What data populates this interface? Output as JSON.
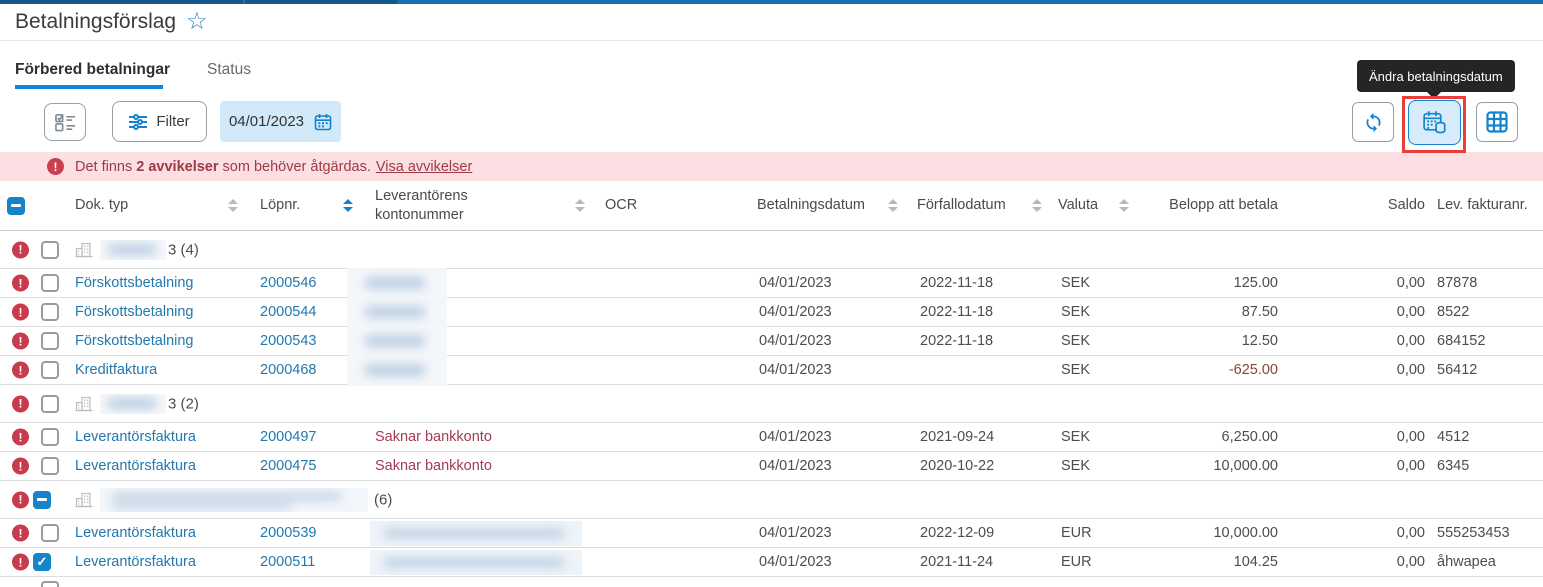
{
  "page": {
    "title": "Betalningsförslag"
  },
  "tabs": {
    "prepare": "Förbered betalningar",
    "status": "Status"
  },
  "toolbar": {
    "filter_label": "Filter",
    "date_value": "04/01/2023",
    "tooltip": "Ändra betalningsdatum"
  },
  "alert": {
    "prefix": "Det finns",
    "count_bold": "2 avvikelser",
    "suffix": "som behöver åtgärdas.",
    "link": "Visa avvikelser"
  },
  "colors": {
    "accent_blue": "#1482cc",
    "alert_red": "#9e3a45",
    "annotation_red": "#e93f38"
  },
  "table": {
    "columns": [
      {
        "label": "Dok. typ",
        "sort": "inactive"
      },
      {
        "label": "Löpnr.",
        "sort": "active"
      },
      {
        "label": "Leverantörens kontonummer",
        "sort": "inactive"
      },
      {
        "label": "OCR",
        "sort": "none"
      },
      {
        "label": "Betalningsdatum",
        "sort": "inactive"
      },
      {
        "label": "Förfallodatum",
        "sort": "inactive"
      },
      {
        "label": "Valuta",
        "sort": "inactive"
      },
      {
        "label": "Belopp att betala",
        "sort": "none"
      },
      {
        "label": "Saldo",
        "sort": "none"
      },
      {
        "label": "Lev. fakturanr.",
        "sort": "none"
      }
    ],
    "header_checkbox": "indeterminate",
    "rows": [
      {
        "kind": "group",
        "label": "3 (4)",
        "checkbox": "unchecked",
        "error": false,
        "blur": "small"
      },
      {
        "kind": "data",
        "doc": "Förskottsbetalning",
        "lopnr": "2000546",
        "konto": "",
        "konto_blur": "narrow",
        "betal": "04/01/2023",
        "forfall": "2022-11-18",
        "valuta": "SEK",
        "belopp": "125.00",
        "saldo": "0,00",
        "lev": "87878",
        "checkbox": "unchecked",
        "error": false
      },
      {
        "kind": "data",
        "doc": "Förskottsbetalning",
        "lopnr": "2000544",
        "konto": "",
        "konto_blur": "narrow",
        "betal": "04/01/2023",
        "forfall": "2022-11-18",
        "valuta": "SEK",
        "belopp": "87.50",
        "saldo": "0,00",
        "lev": "8522",
        "checkbox": "unchecked",
        "error": false
      },
      {
        "kind": "data",
        "doc": "Förskottsbetalning",
        "lopnr": "2000543",
        "konto": "",
        "konto_blur": "narrow",
        "betal": "04/01/2023",
        "forfall": "2022-11-18",
        "valuta": "SEK",
        "belopp": "12.50",
        "saldo": "0,00",
        "lev": "684152",
        "checkbox": "unchecked",
        "error": false
      },
      {
        "kind": "data",
        "doc": "Kreditfaktura",
        "lopnr": "2000468",
        "konto": "",
        "konto_blur": "narrow",
        "betal": "04/01/2023",
        "forfall": "",
        "valuta": "SEK",
        "belopp": "-625.00",
        "saldo": "0,00",
        "lev": "56412",
        "checkbox": "unchecked",
        "error": false
      },
      {
        "kind": "group",
        "label": "3 (2)",
        "checkbox": "unchecked",
        "error": false,
        "blur": "small"
      },
      {
        "kind": "data",
        "doc": "Leverantörsfaktura",
        "lopnr": "2000497",
        "konto": "Saknar bankkonto",
        "konto_blur": "",
        "betal": "04/01/2023",
        "forfall": "2021-09-24",
        "valuta": "SEK",
        "belopp": "6,250.00",
        "saldo": "0,00",
        "lev": "4512",
        "checkbox": "unchecked",
        "error": false
      },
      {
        "kind": "data",
        "doc": "Leverantörsfaktura",
        "lopnr": "2000475",
        "konto": "Saknar bankkonto",
        "konto_blur": "",
        "betal": "04/01/2023",
        "forfall": "2020-10-22",
        "valuta": "SEK",
        "belopp": "10,000.00",
        "saldo": "0,00",
        "lev": "6345",
        "checkbox": "unchecked",
        "error": false
      },
      {
        "kind": "group",
        "label": "(6)",
        "checkbox": "indeterminate",
        "error": true,
        "blur": "big"
      },
      {
        "kind": "data",
        "doc": "Leverantörsfaktura",
        "lopnr": "2000539",
        "konto": "",
        "konto_blur": "wide",
        "betal": "04/01/2023",
        "forfall": "2022-12-09",
        "valuta": "EUR",
        "belopp": "10,000.00",
        "saldo": "0,00",
        "lev": "555253453",
        "checkbox": "unchecked",
        "error": false
      },
      {
        "kind": "data",
        "doc": "Leverantörsfaktura",
        "lopnr": "2000511",
        "konto": "",
        "konto_blur": "wide",
        "betal": "04/01/2023",
        "forfall": "2021-11-24",
        "valuta": "EUR",
        "belopp": "104.25",
        "saldo": "0,00",
        "lev": "åhwapea",
        "checkbox": "checked",
        "error": true
      }
    ]
  }
}
